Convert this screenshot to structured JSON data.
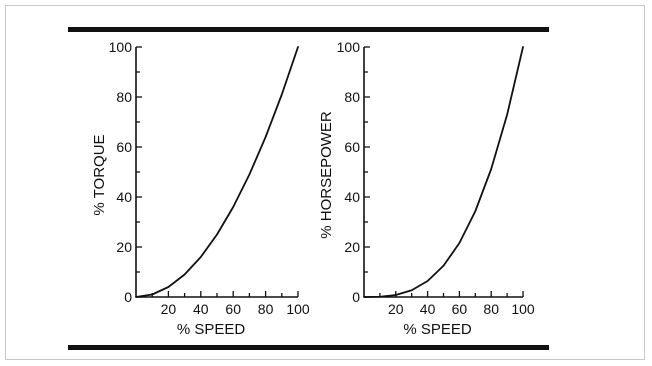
{
  "colors": {
    "ink": "#111111",
    "frame_border": "#c9c9c9",
    "background": "#ffffff"
  },
  "chart_data": [
    {
      "type": "line",
      "xlabel": "% SPEED",
      "ylabel": "% TORQUE",
      "xlim": [
        0,
        100
      ],
      "ylim": [
        0,
        100
      ],
      "x_ticks": [
        20,
        40,
        60,
        80,
        100
      ],
      "y_ticks": [
        0,
        20,
        40,
        60,
        80,
        100
      ],
      "grid": false,
      "series": [
        {
          "x": [
            0,
            10,
            20,
            30,
            40,
            50,
            60,
            70,
            80,
            90,
            100
          ],
          "y": [
            0,
            1,
            4,
            9,
            16,
            25,
            36,
            49,
            64,
            81,
            100
          ]
        }
      ]
    },
    {
      "type": "line",
      "xlabel": "% SPEED",
      "ylabel": "% HORSEPOWER",
      "xlim": [
        0,
        100
      ],
      "ylim": [
        0,
        100
      ],
      "x_ticks": [
        20,
        40,
        60,
        80,
        100
      ],
      "y_ticks": [
        0,
        20,
        40,
        60,
        80,
        100
      ],
      "grid": false,
      "series": [
        {
          "x": [
            0,
            10,
            20,
            30,
            40,
            50,
            60,
            70,
            80,
            90,
            100
          ],
          "y": [
            0,
            0.1,
            0.8,
            2.7,
            6.4,
            12.5,
            21.6,
            34.3,
            51.2,
            72.9,
            100
          ]
        }
      ]
    }
  ]
}
